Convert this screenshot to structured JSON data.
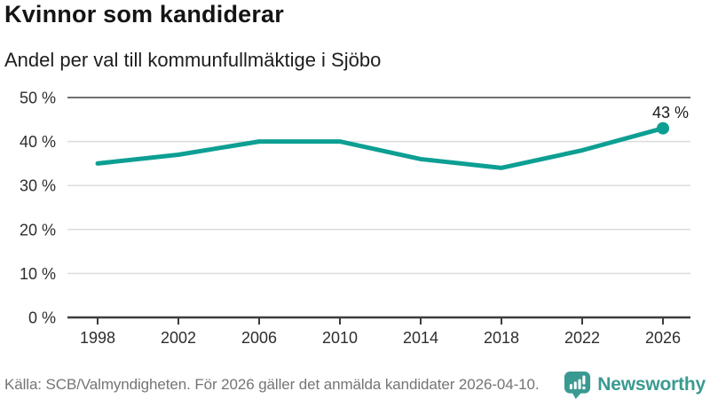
{
  "header": {
    "title": "Kvinnor som kandiderar",
    "subtitle": "Andel per val till kommunfullmäktige i Sjöbo"
  },
  "chart_data": {
    "type": "line",
    "title": "Kvinnor som kandiderar",
    "subtitle": "Andel per val till kommunfullmäktige i Sjöbo",
    "x": [
      "1998",
      "2002",
      "2006",
      "2010",
      "2014",
      "2018",
      "2022",
      "2026"
    ],
    "values": [
      35,
      37,
      40,
      40,
      36,
      34,
      38,
      43
    ],
    "end_label": "43 %",
    "xlabel": "",
    "ylabel": "",
    "ylim": [
      0,
      50
    ],
    "ytick_values": [
      0,
      10,
      20,
      30,
      40,
      50
    ],
    "ytick_labels": [
      "0 %",
      "10 %",
      "20 %",
      "30 %",
      "40 %",
      "50 %"
    ],
    "grid": "horizontal",
    "legend": "none",
    "line_color": "#0d9f93",
    "grid_color": "#dcdcdc",
    "top_line_color": "#6f6f6f",
    "axis_color": "#3c3c3c"
  },
  "footer": {
    "source_note": "Källa: SCB/Valmyndigheten. För 2026 gäller det anmälda kandidater 2026-04-10.",
    "brand_name": "Newsworthy",
    "brand_color": "#3a9a92"
  }
}
